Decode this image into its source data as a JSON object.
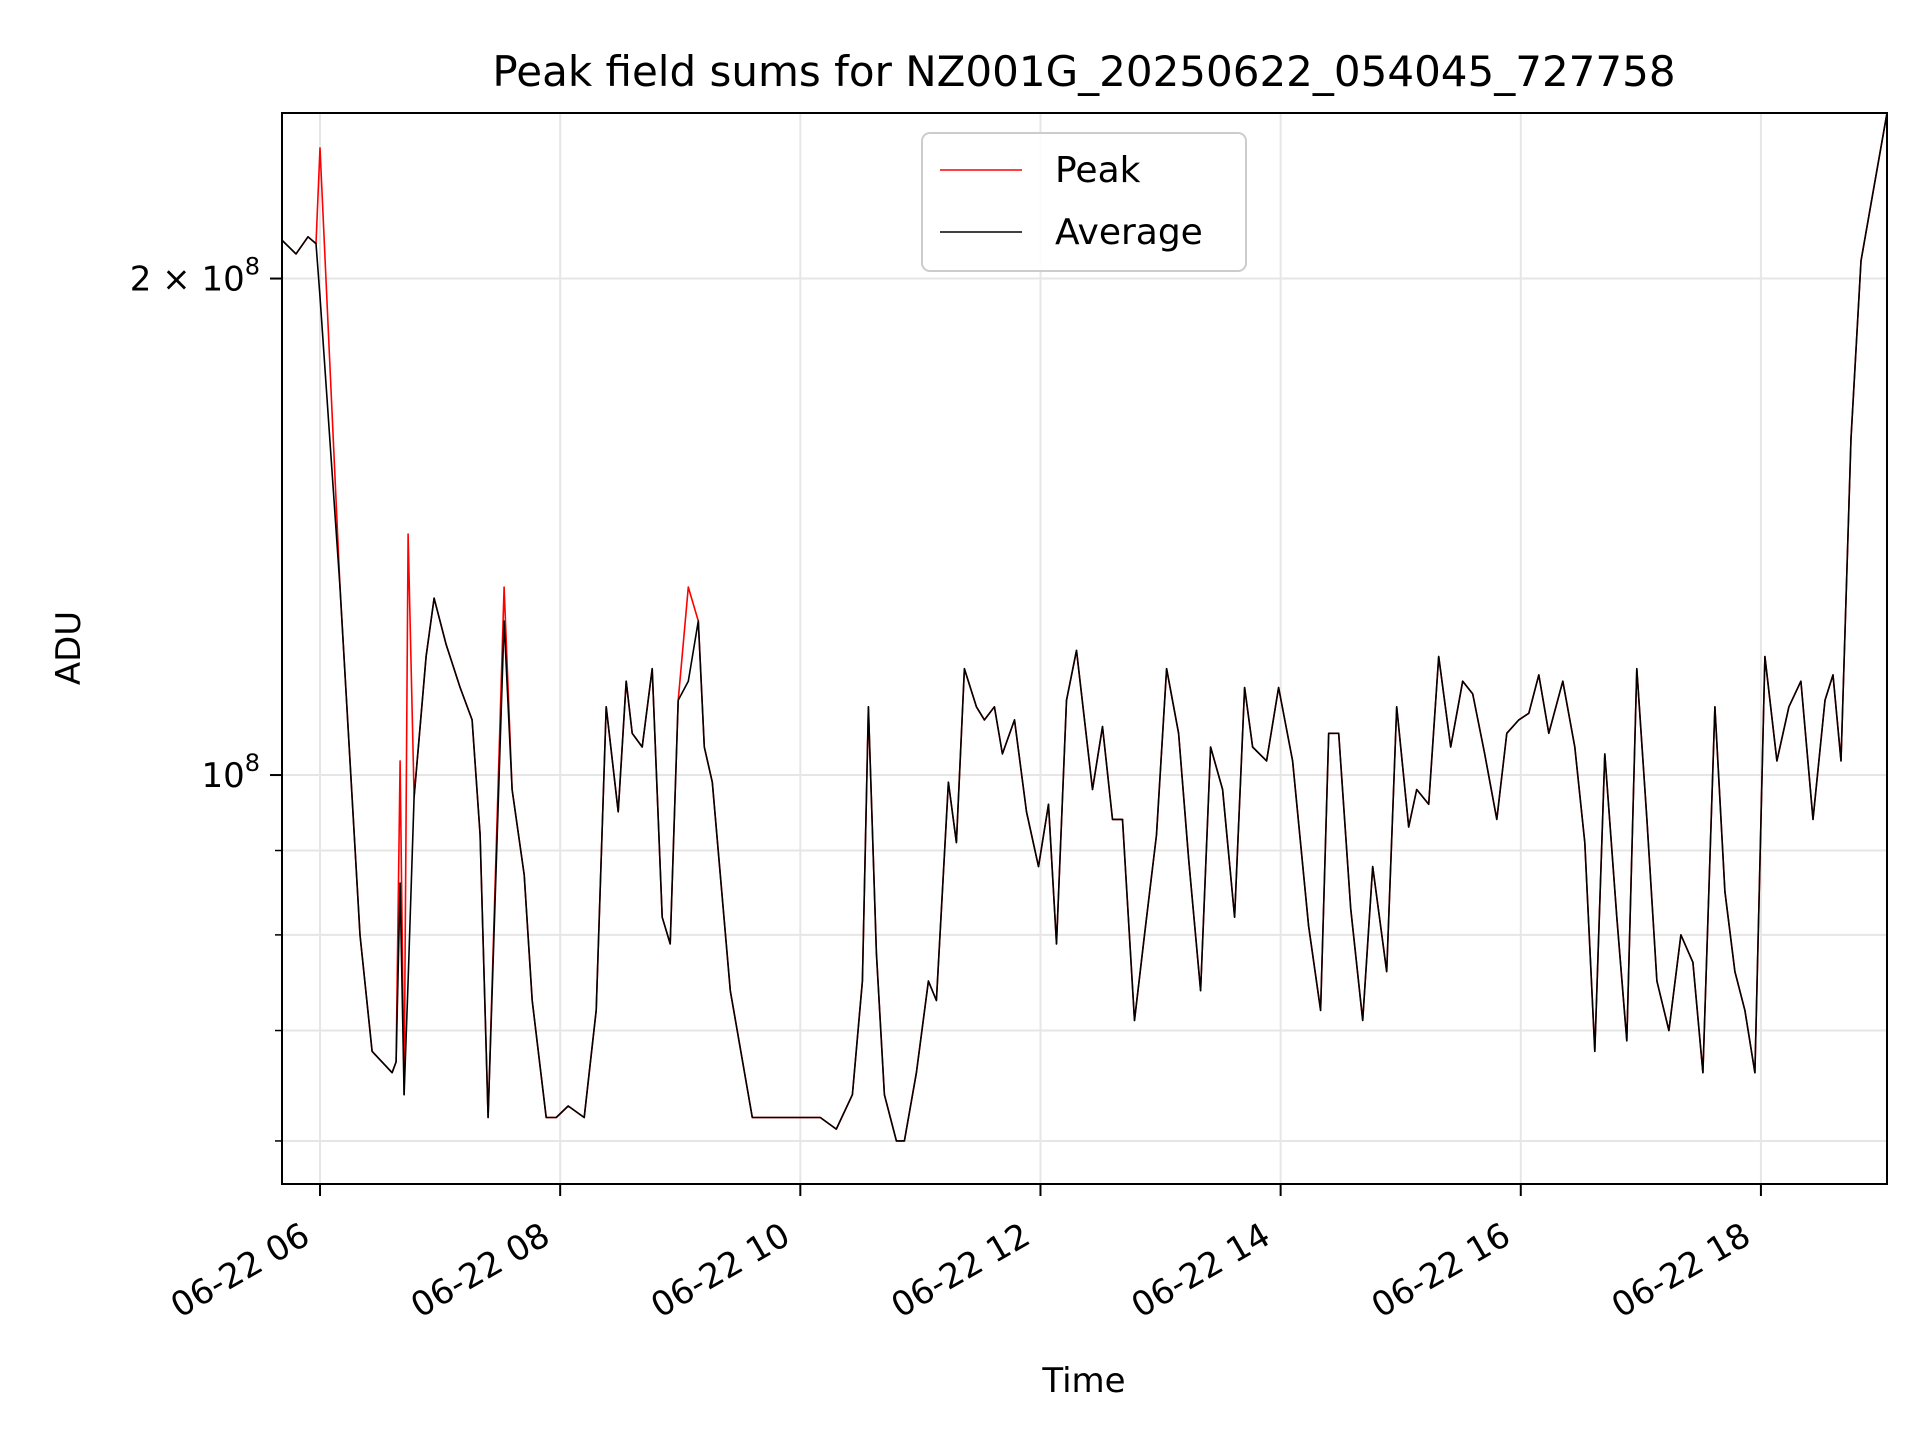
{
  "chart_data": {
    "type": "line",
    "title": "Peak field sums for NZ001G_20250622_054045_727758",
    "xlabel": "Time",
    "ylabel": "ADU",
    "yscale": "log",
    "xlim": [
      "2025-06-22T05:41",
      "2025-06-22T19:03"
    ],
    "ylim": [
      56500000,
      252000000
    ],
    "grid": true,
    "legend": "upper-center",
    "x_ticks": [
      {
        "at": "2025-06-22T06:00",
        "label": "06-22 06"
      },
      {
        "at": "2025-06-22T08:00",
        "label": "06-22 08"
      },
      {
        "at": "2025-06-22T10:00",
        "label": "06-22 10"
      },
      {
        "at": "2025-06-22T12:00",
        "label": "06-22 12"
      },
      {
        "at": "2025-06-22T14:00",
        "label": "06-22 14"
      },
      {
        "at": "2025-06-22T16:00",
        "label": "06-22 16"
      },
      {
        "at": "2025-06-22T18:00",
        "label": "06-22 18"
      }
    ],
    "y_major_ticks": [
      {
        "value": 100000000,
        "mantissa": "",
        "base": "10",
        "exponent": "8"
      },
      {
        "value": 200000000,
        "mantissa": "2 × ",
        "base": "10",
        "exponent": "8"
      }
    ],
    "y_minor_ticks": [
      60000000,
      70000000,
      80000000,
      90000000
    ],
    "series": [
      {
        "name": "Average",
        "color": "#000000",
        "x": [
          "2025-06-22T05:41",
          "2025-06-22T05:48",
          "2025-06-22T05:54",
          "2025-06-22T05:58",
          "2025-06-22T06:00",
          "2025-06-22T06:10",
          "2025-06-22T06:20",
          "2025-06-22T06:26",
          "2025-06-22T06:36",
          "2025-06-22T06:38",
          "2025-06-22T06:40",
          "2025-06-22T06:42",
          "2025-06-22T06:44",
          "2025-06-22T06:47",
          "2025-06-22T06:53",
          "2025-06-22T06:57",
          "2025-06-22T07:03",
          "2025-06-22T07:10",
          "2025-06-22T07:16",
          "2025-06-22T07:20",
          "2025-06-22T07:24",
          "2025-06-22T07:32",
          "2025-06-22T07:36",
          "2025-06-22T07:42",
          "2025-06-22T07:46",
          "2025-06-22T07:53",
          "2025-06-22T07:58",
          "2025-06-22T08:04",
          "2025-06-22T08:12",
          "2025-06-22T08:18",
          "2025-06-22T08:23",
          "2025-06-22T08:29",
          "2025-06-22T08:33",
          "2025-06-22T08:36",
          "2025-06-22T08:41",
          "2025-06-22T08:46",
          "2025-06-22T08:51",
          "2025-06-22T08:55",
          "2025-06-22T08:59",
          "2025-06-22T09:04",
          "2025-06-22T09:09",
          "2025-06-22T09:12",
          "2025-06-22T09:16",
          "2025-06-22T09:25",
          "2025-06-22T09:36",
          "2025-06-22T09:48",
          "2025-06-22T10:00",
          "2025-06-22T10:10",
          "2025-06-22T10:18",
          "2025-06-22T10:26",
          "2025-06-22T10:31",
          "2025-06-22T10:34",
          "2025-06-22T10:38",
          "2025-06-22T10:42",
          "2025-06-22T10:48",
          "2025-06-22T10:52",
          "2025-06-22T10:58",
          "2025-06-22T11:04",
          "2025-06-22T11:08",
          "2025-06-22T11:14",
          "2025-06-22T11:18",
          "2025-06-22T11:22",
          "2025-06-22T11:28",
          "2025-06-22T11:32",
          "2025-06-22T11:37",
          "2025-06-22T11:41",
          "2025-06-22T11:47",
          "2025-06-22T11:53",
          "2025-06-22T11:59",
          "2025-06-22T12:04",
          "2025-06-22T12:08",
          "2025-06-22T12:13",
          "2025-06-22T12:18",
          "2025-06-22T12:26",
          "2025-06-22T12:31",
          "2025-06-22T12:36",
          "2025-06-22T12:41",
          "2025-06-22T12:47",
          "2025-06-22T12:52",
          "2025-06-22T12:58",
          "2025-06-22T13:03",
          "2025-06-22T13:09",
          "2025-06-22T13:14",
          "2025-06-22T13:20",
          "2025-06-22T13:25",
          "2025-06-22T13:31",
          "2025-06-22T13:37",
          "2025-06-22T13:42",
          "2025-06-22T13:46",
          "2025-06-22T13:53",
          "2025-06-22T13:59",
          "2025-06-22T14:06",
          "2025-06-22T14:14",
          "2025-06-22T14:20",
          "2025-06-22T14:24",
          "2025-06-22T14:29",
          "2025-06-22T14:35",
          "2025-06-22T14:41",
          "2025-06-22T14:46",
          "2025-06-22T14:53",
          "2025-06-22T14:58",
          "2025-06-22T15:04",
          "2025-06-22T15:08",
          "2025-06-22T15:14",
          "2025-06-22T15:19",
          "2025-06-22T15:25",
          "2025-06-22T15:31",
          "2025-06-22T15:36",
          "2025-06-22T15:42",
          "2025-06-22T15:48",
          "2025-06-22T15:53",
          "2025-06-22T15:59",
          "2025-06-22T16:04",
          "2025-06-22T16:09",
          "2025-06-22T16:14",
          "2025-06-22T16:21",
          "2025-06-22T16:27",
          "2025-06-22T16:32",
          "2025-06-22T16:37",
          "2025-06-22T16:42",
          "2025-06-22T16:48",
          "2025-06-22T16:53",
          "2025-06-22T16:58",
          "2025-06-22T17:03",
          "2025-06-22T17:08",
          "2025-06-22T17:14",
          "2025-06-22T17:20",
          "2025-06-22T17:26",
          "2025-06-22T17:31",
          "2025-06-22T17:37",
          "2025-06-22T17:42",
          "2025-06-22T17:47",
          "2025-06-22T17:52",
          "2025-06-22T17:57",
          "2025-06-22T18:02",
          "2025-06-22T18:08",
          "2025-06-22T18:14",
          "2025-06-22T18:20",
          "2025-06-22T18:26",
          "2025-06-22T18:32",
          "2025-06-22T18:36",
          "2025-06-22T18:40",
          "2025-06-22T18:45",
          "2025-06-22T18:50",
          "2025-06-22T18:55",
          "2025-06-22T19:03"
        ],
        "values": [
          211000000,
          207000000,
          212000000,
          210000000,
          195000000,
          130000000,
          80000000,
          68000000,
          66000000,
          67000000,
          86000000,
          64000000,
          75000000,
          97000000,
          118000000,
          128000000,
          120000000,
          113000000,
          108000000,
          92000000,
          62000000,
          124000000,
          98000000,
          87000000,
          73000000,
          62000000,
          62000000,
          63000000,
          62000000,
          72000000,
          110000000,
          95000000,
          114000000,
          106000000,
          104000000,
          116000000,
          82000000,
          79000000,
          111000000,
          114000000,
          124000000,
          104000000,
          99000000,
          74000000,
          62000000,
          62000000,
          62000000,
          62000000,
          61000000,
          64000000,
          75000000,
          110000000,
          78000000,
          64000000,
          60000000,
          60000000,
          66000000,
          75000000,
          73000000,
          99000000,
          91000000,
          116000000,
          110000000,
          108000000,
          110000000,
          103000000,
          108000000,
          95000000,
          88000000,
          96000000,
          79000000,
          111000000,
          119000000,
          98000000,
          107000000,
          94000000,
          94000000,
          71000000,
          80000000,
          92000000,
          116000000,
          106000000,
          89000000,
          74000000,
          104000000,
          98000000,
          82000000,
          113000000,
          104000000,
          102000000,
          113000000,
          102000000,
          81000000,
          72000000,
          106000000,
          106000000,
          83000000,
          71000000,
          88000000,
          76000000,
          110000000,
          93000000,
          98000000,
          96000000,
          118000000,
          104000000,
          114000000,
          112000000,
          103000000,
          94000000,
          106000000,
          108000000,
          109000000,
          115000000,
          106000000,
          114000000,
          104000000,
          91000000,
          68000000,
          103000000,
          82000000,
          69000000,
          116000000,
          94000000,
          75000000,
          70000000,
          80000000,
          77000000,
          66000000,
          110000000,
          85000000,
          76000000,
          72000000,
          66000000,
          118000000,
          102000000,
          110000000,
          114000000,
          94000000,
          111000000,
          115000000,
          102000000,
          160000000,
          205000000,
          222000000,
          252000000
        ]
      },
      {
        "name": "Peak",
        "color": "#ff0000",
        "x": [
          "2025-06-22T05:41",
          "2025-06-22T05:48",
          "2025-06-22T05:54",
          "2025-06-22T05:58",
          "2025-06-22T06:00",
          "2025-06-22T06:10",
          "2025-06-22T06:20",
          "2025-06-22T06:26",
          "2025-06-22T06:36",
          "2025-06-22T06:38",
          "2025-06-22T06:40",
          "2025-06-22T06:42",
          "2025-06-22T06:44",
          "2025-06-22T06:47",
          "2025-06-22T06:53",
          "2025-06-22T06:57",
          "2025-06-22T07:03",
          "2025-06-22T07:10",
          "2025-06-22T07:16",
          "2025-06-22T07:20",
          "2025-06-22T07:24",
          "2025-06-22T07:32",
          "2025-06-22T07:36",
          "2025-06-22T07:42",
          "2025-06-22T07:46",
          "2025-06-22T07:53",
          "2025-06-22T07:58",
          "2025-06-22T08:04",
          "2025-06-22T08:12",
          "2025-06-22T08:18",
          "2025-06-22T08:23",
          "2025-06-22T08:29",
          "2025-06-22T08:33",
          "2025-06-22T08:36",
          "2025-06-22T08:41",
          "2025-06-22T08:46",
          "2025-06-22T08:51",
          "2025-06-22T08:55",
          "2025-06-22T08:59",
          "2025-06-22T09:04",
          "2025-06-22T09:09",
          "2025-06-22T09:12",
          "2025-06-22T09:16",
          "2025-06-22T09:25",
          "2025-06-22T09:36",
          "2025-06-22T09:48",
          "2025-06-22T10:00",
          "2025-06-22T10:10",
          "2025-06-22T10:18",
          "2025-06-22T10:26",
          "2025-06-22T10:31",
          "2025-06-22T10:34",
          "2025-06-22T10:38",
          "2025-06-22T10:42",
          "2025-06-22T10:48",
          "2025-06-22T10:52",
          "2025-06-22T10:58",
          "2025-06-22T11:04",
          "2025-06-22T11:08",
          "2025-06-22T11:14",
          "2025-06-22T11:18",
          "2025-06-22T11:22",
          "2025-06-22T11:28",
          "2025-06-22T11:32",
          "2025-06-22T11:37",
          "2025-06-22T11:41",
          "2025-06-22T11:47",
          "2025-06-22T11:53",
          "2025-06-22T11:59",
          "2025-06-22T12:04",
          "2025-06-22T12:08",
          "2025-06-22T12:13",
          "2025-06-22T12:18",
          "2025-06-22T12:26",
          "2025-06-22T12:31",
          "2025-06-22T12:36",
          "2025-06-22T12:41",
          "2025-06-22T12:47",
          "2025-06-22T12:52",
          "2025-06-22T12:58",
          "2025-06-22T13:03",
          "2025-06-22T13:09",
          "2025-06-22T13:14",
          "2025-06-22T13:20",
          "2025-06-22T13:25",
          "2025-06-22T13:31",
          "2025-06-22T13:37",
          "2025-06-22T13:42",
          "2025-06-22T13:46",
          "2025-06-22T13:53",
          "2025-06-22T13:59",
          "2025-06-22T14:06",
          "2025-06-22T14:14",
          "2025-06-22T14:20",
          "2025-06-22T14:24",
          "2025-06-22T14:29",
          "2025-06-22T14:35",
          "2025-06-22T14:41",
          "2025-06-22T14:46",
          "2025-06-22T14:53",
          "2025-06-22T14:58",
          "2025-06-22T15:04",
          "2025-06-22T15:08",
          "2025-06-22T15:14",
          "2025-06-22T15:19",
          "2025-06-22T15:25",
          "2025-06-22T15:31",
          "2025-06-22T15:36",
          "2025-06-22T15:42",
          "2025-06-22T15:48",
          "2025-06-22T15:53",
          "2025-06-22T15:59",
          "2025-06-22T16:04",
          "2025-06-22T16:09",
          "2025-06-22T16:14",
          "2025-06-22T16:21",
          "2025-06-22T16:27",
          "2025-06-22T16:32",
          "2025-06-22T16:37",
          "2025-06-22T16:42",
          "2025-06-22T16:48",
          "2025-06-22T16:53",
          "2025-06-22T16:58",
          "2025-06-22T17:03",
          "2025-06-22T17:08",
          "2025-06-22T17:14",
          "2025-06-22T17:20",
          "2025-06-22T17:26",
          "2025-06-22T17:31",
          "2025-06-22T17:37",
          "2025-06-22T17:42",
          "2025-06-22T17:47",
          "2025-06-22T17:52",
          "2025-06-22T17:57",
          "2025-06-22T18:02",
          "2025-06-22T18:08",
          "2025-06-22T18:14",
          "2025-06-22T18:20",
          "2025-06-22T18:26",
          "2025-06-22T18:32",
          "2025-06-22T18:36",
          "2025-06-22T18:40",
          "2025-06-22T18:45",
          "2025-06-22T18:50",
          "2025-06-22T18:55",
          "2025-06-22T19:03"
        ],
        "values": [
          211000000,
          207000000,
          212000000,
          210000000,
          240000000,
          130000000,
          80000000,
          68000000,
          66000000,
          67000000,
          102000000,
          64000000,
          140000000,
          97000000,
          118000000,
          128000000,
          120000000,
          113000000,
          108000000,
          92000000,
          62000000,
          130000000,
          98000000,
          87000000,
          73000000,
          62000000,
          62000000,
          63000000,
          62000000,
          72000000,
          110000000,
          95000000,
          114000000,
          106000000,
          104000000,
          116000000,
          82000000,
          79000000,
          111000000,
          130000000,
          124000000,
          104000000,
          99000000,
          74000000,
          62000000,
          62000000,
          62000000,
          62000000,
          61000000,
          64000000,
          75000000,
          110000000,
          78000000,
          64000000,
          60000000,
          60000000,
          66000000,
          75000000,
          73000000,
          99000000,
          91000000,
          116000000,
          110000000,
          108000000,
          110000000,
          103000000,
          108000000,
          95000000,
          88000000,
          96000000,
          79000000,
          111000000,
          119000000,
          98000000,
          107000000,
          94000000,
          94000000,
          71000000,
          80000000,
          92000000,
          116000000,
          106000000,
          89000000,
          74000000,
          104000000,
          98000000,
          82000000,
          113000000,
          104000000,
          102000000,
          113000000,
          102000000,
          81000000,
          72000000,
          106000000,
          106000000,
          83000000,
          71000000,
          88000000,
          76000000,
          110000000,
          93000000,
          98000000,
          96000000,
          118000000,
          104000000,
          114000000,
          112000000,
          103000000,
          94000000,
          106000000,
          108000000,
          109000000,
          115000000,
          106000000,
          114000000,
          104000000,
          91000000,
          68000000,
          103000000,
          82000000,
          69000000,
          116000000,
          94000000,
          75000000,
          70000000,
          80000000,
          77000000,
          66000000,
          110000000,
          85000000,
          76000000,
          72000000,
          66000000,
          118000000,
          102000000,
          110000000,
          114000000,
          94000000,
          111000000,
          115000000,
          102000000,
          160000000,
          205000000,
          222000000,
          252000000
        ]
      }
    ]
  }
}
